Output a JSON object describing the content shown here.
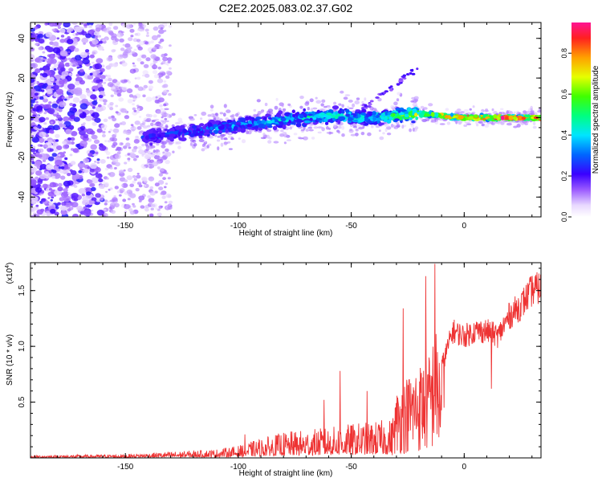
{
  "title": "C2E2.2025.083.02.37.G02",
  "chart_data": [
    {
      "type": "heatmap",
      "xlabel": "Height of straight line (km)",
      "ylabel": "Frequency (Hz)",
      "xlim": [
        -192,
        34
      ],
      "ylim": [
        -50,
        48
      ],
      "x_ticks": [
        -150,
        -100,
        -50,
        0
      ],
      "y_ticks": [
        -40,
        -20,
        0,
        20,
        40
      ],
      "colorbar": {
        "label": "Normalized spectral amplitude",
        "range": [
          0,
          0.95
        ],
        "ticks": [
          0.0,
          0.2,
          0.4,
          0.6,
          0.8
        ]
      },
      "ridge": {
        "description_points_x": [
          -142,
          -120,
          -100,
          -80,
          -60,
          -40,
          -20,
          0,
          20,
          33
        ],
        "description_points_y": [
          -10,
          -7,
          -4,
          -1,
          1,
          0,
          2,
          0,
          0,
          0
        ],
        "amplitude": [
          0.25,
          0.3,
          0.35,
          0.4,
          0.45,
          0.45,
          0.65,
          0.85,
          0.9,
          0.9
        ]
      }
    },
    {
      "type": "line",
      "xlabel": "Height of straight line (km)",
      "ylabel": "SNR (10 * v/v)",
      "y_multiplier": "(x10",
      "y_multiplier_exp": "4",
      "y_multiplier_close": ")",
      "xlim": [
        -192,
        34
      ],
      "ylim": [
        0,
        17500
      ],
      "x_ticks": [
        -150,
        -100,
        -50,
        0
      ],
      "y_ticks": [
        0.5,
        1.0,
        1.5
      ],
      "y_tick_labels": [
        "0.5",
        "1.0",
        "1.5"
      ],
      "color": "#ee3333",
      "envelope": {
        "x": [
          -192,
          -150,
          -130,
          -110,
          -100,
          -90,
          -80,
          -70,
          -60,
          -50,
          -40,
          -32,
          -30,
          -25,
          -20,
          -15,
          -13,
          -10,
          -5,
          0,
          5,
          10,
          15,
          20,
          25,
          30,
          34
        ],
        "y": [
          200,
          300,
          500,
          700,
          1000,
          1600,
          2100,
          2300,
          2500,
          2800,
          3000,
          3200,
          6000,
          7500,
          8500,
          9500,
          12000,
          9000,
          12500,
          12000,
          12500,
          12500,
          12000,
          14000,
          15000,
          16500,
          16800
        ]
      },
      "spikes": [
        {
          "x": -97,
          "y": 2100
        },
        {
          "x": -62,
          "y": 5200
        },
        {
          "x": -55,
          "y": 7800
        },
        {
          "x": -43,
          "y": 6000
        },
        {
          "x": -27,
          "y": 13400
        },
        {
          "x": -17,
          "y": 16300
        },
        {
          "x": -13,
          "y": 17400
        },
        {
          "x": -9,
          "y": 4500
        },
        {
          "x": 12,
          "y": 6200
        }
      ]
    }
  ]
}
